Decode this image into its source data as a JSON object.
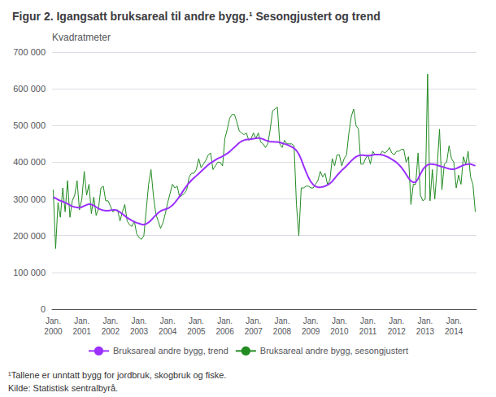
{
  "chart_data": {
    "type": "line",
    "title": "Figur 2. Igangsatt bruksareal til andre bygg.¹ Sesongjustert og trend",
    "ylabel": "Kvadratmeter",
    "annotations": [
      "¹Tallene er unntatt bygg for jordbruk, skogbruk og fiske.",
      "Kilde: Statistisk sentralbyrå."
    ],
    "categories": [
      "Jan.\n2000",
      null,
      null,
      null,
      null,
      null,
      null,
      null,
      null,
      null,
      null,
      null,
      "Jan.\n2001",
      null,
      null,
      null,
      null,
      null,
      null,
      null,
      null,
      null,
      null,
      null,
      "Jan.\n2002",
      null,
      null,
      null,
      null,
      null,
      null,
      null,
      null,
      null,
      null,
      null,
      "Jan.\n2003",
      null,
      null,
      null,
      null,
      null,
      null,
      null,
      null,
      null,
      null,
      null,
      "Jan.\n2004",
      null,
      null,
      null,
      null,
      null,
      null,
      null,
      null,
      null,
      null,
      null,
      "Jan.\n2005",
      null,
      null,
      null,
      null,
      null,
      null,
      null,
      null,
      null,
      null,
      null,
      "Jan.\n2006",
      null,
      null,
      null,
      null,
      null,
      null,
      null,
      null,
      null,
      null,
      null,
      "Jan.\n2007",
      null,
      null,
      null,
      null,
      null,
      null,
      null,
      null,
      null,
      null,
      null,
      "Jan.\n2008",
      null,
      null,
      null,
      null,
      null,
      null,
      null,
      null,
      null,
      null,
      null,
      "Jan.\n2009",
      null,
      null,
      null,
      null,
      null,
      null,
      null,
      null,
      null,
      null,
      null,
      "Jan.\n2010",
      null,
      null,
      null,
      null,
      null,
      null,
      null,
      null,
      null,
      null,
      null,
      "Jan.\n2011",
      null,
      null,
      null,
      null,
      null,
      null,
      null,
      null,
      null,
      null,
      null,
      "Jan.\n2012",
      null,
      null,
      null,
      null,
      null,
      null,
      null,
      null,
      null,
      null,
      null,
      "Jan.\n2013",
      null,
      null,
      null,
      null,
      null,
      null,
      null,
      null,
      null,
      null,
      null,
      "Jan.\n2014",
      null,
      null,
      null,
      null,
      null,
      null,
      null,
      null,
      null
    ],
    "series": [
      {
        "name": "Bruksareal andre bygg, sesongjustert",
        "color": "#228B22",
        "values": [
          325000,
          165000,
          290000,
          250000,
          330000,
          265000,
          350000,
          250000,
          295000,
          310000,
          350000,
          270000,
          300000,
          375000,
          310000,
          340000,
          260000,
          305000,
          255000,
          275000,
          330000,
          335000,
          295000,
          295000,
          280000,
          265000,
          270000,
          270000,
          240000,
          265000,
          285000,
          240000,
          230000,
          225000,
          240000,
          205000,
          195000,
          190000,
          200000,
          270000,
          340000,
          380000,
          310000,
          260000,
          240000,
          220000,
          235000,
          260000,
          290000,
          315000,
          340000,
          330000,
          335000,
          305000,
          310000,
          315000,
          325000,
          360000,
          370000,
          370000,
          380000,
          410000,
          385000,
          395000,
          405000,
          420000,
          425000,
          380000,
          390000,
          400000,
          400000,
          390000,
          465000,
          490000,
          520000,
          530000,
          530000,
          510000,
          485000,
          480000,
          475000,
          480000,
          460000,
          465000,
          480000,
          465000,
          480000,
          455000,
          450000,
          440000,
          450000,
          490000,
          540000,
          545000,
          550000,
          450000,
          440000,
          460000,
          450000,
          450000,
          450000,
          445000,
          285000,
          200000,
          330000,
          330000,
          335000,
          335000,
          330000,
          330000,
          340000,
          350000,
          375000,
          360000,
          370000,
          340000,
          350000,
          410000,
          390000,
          420000,
          420000,
          390000,
          410000,
          420000,
          480000,
          525000,
          545000,
          500000,
          490000,
          395000,
          395000,
          410000,
          420000,
          395000,
          430000,
          420000,
          420000,
          420000,
          430000,
          425000,
          430000,
          440000,
          425000,
          420000,
          430000,
          430000,
          435000,
          435000,
          400000,
          415000,
          285000,
          340000,
          340000,
          425000,
          310000,
          295000,
          300000,
          640000,
          295000,
          380000,
          300000,
          385000,
          490000,
          325000,
          395000,
          400000,
          445000,
          410000,
          400000,
          330000,
          365000,
          340000,
          415000,
          395000,
          430000,
          360000,
          340000,
          265000
        ]
      },
      {
        "name": "Bruksareal andre bygg, trend",
        "color": "#9B30FF",
        "values": [
          305000,
          302000,
          298000,
          295000,
          293000,
          290000,
          287000,
          283000,
          280000,
          278000,
          277000,
          276000,
          278000,
          281000,
          284000,
          286000,
          285000,
          282000,
          278000,
          274000,
          271000,
          269000,
          268000,
          268000,
          269000,
          270000,
          270000,
          268000,
          264000,
          259000,
          254000,
          249000,
          245000,
          241000,
          238000,
          235000,
          233000,
          231000,
          230000,
          232000,
          236000,
          242000,
          249000,
          256000,
          262000,
          267000,
          270000,
          272000,
          274000,
          278000,
          283000,
          290000,
          298000,
          307000,
          317000,
          327000,
          336000,
          344000,
          351000,
          357000,
          363000,
          369000,
          375000,
          381000,
          387000,
          393000,
          398000,
          402000,
          406000,
          410000,
          413000,
          416000,
          420000,
          424000,
          429000,
          435000,
          441000,
          447000,
          453000,
          457000,
          460000,
          462000,
          462000,
          463000,
          464000,
          465000,
          466000,
          465000,
          463000,
          460000,
          458000,
          456000,
          456000,
          455000,
          455000,
          454000,
          452000,
          450000,
          448000,
          445000,
          442000,
          438000,
          432000,
          422000,
          408000,
          390000,
          374000,
          359000,
          347000,
          339000,
          334000,
          332000,
          332000,
          333000,
          335000,
          338000,
          342000,
          348000,
          356000,
          364000,
          371000,
          378000,
          384000,
          390000,
          397000,
          404000,
          410000,
          415000,
          418000,
          419000,
          419000,
          418000,
          418000,
          418000,
          420000,
          421000,
          421000,
          421000,
          420000,
          418000,
          415000,
          412000,
          408000,
          404000,
          399000,
          393000,
          386000,
          377000,
          367000,
          357000,
          349000,
          345000,
          346000,
          355000,
          368000,
          380000,
          388000,
          393000,
          395000,
          395000,
          394000,
          392000,
          390000,
          388000,
          386000,
          384000,
          382000,
          381000,
          381000,
          383000,
          386000,
          389000,
          392000,
          394000,
          395000,
          395000,
          393000,
          390000
        ]
      }
    ],
    "ylim": [
      0,
      700000
    ],
    "yticks": [
      0,
      {
        "value": 100000,
        "label": "100 000"
      },
      {
        "value": 200000,
        "label": "200 000"
      },
      {
        "value": 300000,
        "label": "300 000"
      },
      {
        "value": 400000,
        "label": "400 000"
      },
      {
        "value": 500000,
        "label": "500 000"
      },
      {
        "value": 600000,
        "label": "600 000"
      },
      {
        "value": 700000,
        "label": "700 000"
      }
    ],
    "grid": true,
    "legend": "bottom"
  }
}
